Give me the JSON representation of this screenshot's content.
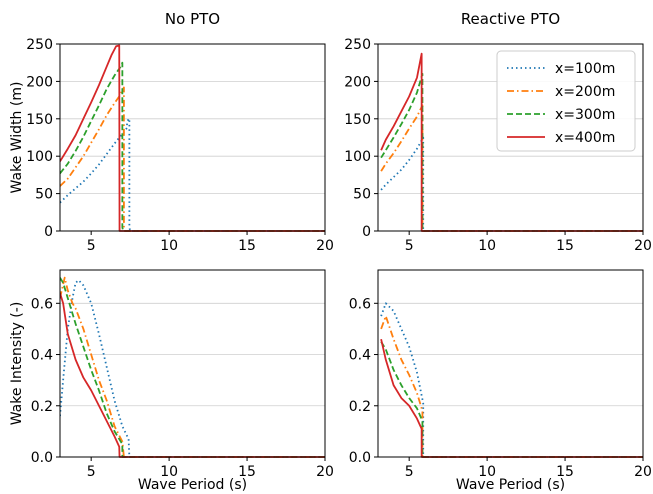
{
  "chart_data": [
    {
      "type": "line",
      "title": "No PTO",
      "xlabel": "",
      "ylabel": "Wake Width (m)",
      "xlim": [
        3,
        20
      ],
      "ylim": [
        0,
        250
      ],
      "xticks": [
        5,
        10,
        15,
        20
      ],
      "yticks": [
        0,
        50,
        100,
        150,
        200,
        250
      ],
      "grid": "horizontal",
      "series": [
        {
          "name": "x=100m",
          "color": "#1f77b4",
          "dash": "dotted",
          "x": [
            3.0,
            3.5,
            4.0,
            4.5,
            5.0,
            5.5,
            6.0,
            6.5,
            7.0,
            7.2,
            7.3,
            7.3,
            7.4,
            7.45,
            7.45,
            7.5,
            10,
            15,
            20
          ],
          "y": [
            38,
            48,
            57,
            66,
            77,
            89,
            103,
            117,
            130,
            135,
            138,
            145,
            150,
            150,
            5,
            0,
            0,
            0,
            0
          ]
        },
        {
          "name": "x=200m",
          "color": "#ff7f0e",
          "dash": "dashdot",
          "x": [
            3.0,
            3.5,
            4.0,
            4.5,
            5.0,
            5.5,
            6.0,
            6.5,
            6.8,
            7.0,
            7.1,
            7.1,
            7.15,
            7.2,
            10,
            15,
            20
          ],
          "y": [
            60,
            70,
            85,
            100,
            118,
            136,
            155,
            171,
            180,
            188,
            192,
            3,
            0,
            0,
            0,
            0,
            0
          ]
        },
        {
          "name": "x=300m",
          "color": "#2ca02c",
          "dash": "dashed",
          "x": [
            3.0,
            3.5,
            4.0,
            4.5,
            5.0,
            5.5,
            6.0,
            6.5,
            6.9,
            7.0,
            7.0,
            7.05,
            10,
            15,
            20
          ],
          "y": [
            77,
            90,
            107,
            126,
            147,
            168,
            190,
            208,
            220,
            225,
            5,
            0,
            0,
            0,
            0
          ]
        },
        {
          "name": "x=400m",
          "color": "#d62728",
          "dash": "solid",
          "x": [
            3.0,
            3.5,
            4.0,
            4.5,
            5.0,
            5.5,
            6.0,
            6.3,
            6.6,
            6.8,
            6.82,
            6.85,
            10,
            15,
            20
          ],
          "y": [
            93,
            110,
            128,
            150,
            172,
            195,
            220,
            235,
            247,
            248,
            0,
            0,
            0,
            0,
            0
          ]
        }
      ]
    },
    {
      "type": "line",
      "title": "Reactive PTO",
      "xlabel": "",
      "ylabel": "",
      "xlim": [
        3,
        20
      ],
      "ylim": [
        0,
        250
      ],
      "xticks": [
        5,
        10,
        15,
        20
      ],
      "yticks": [
        0,
        50,
        100,
        150,
        200,
        250
      ],
      "grid": "horizontal",
      "legend": "top-right",
      "series": [
        {
          "name": "x=100m",
          "color": "#1f77b4",
          "dash": "dotted",
          "x": [
            3.2,
            3.5,
            4.0,
            4.5,
            5.0,
            5.5,
            5.9,
            5.9,
            5.95,
            10,
            15,
            20
          ],
          "y": [
            55,
            62,
            72,
            82,
            95,
            110,
            125,
            0,
            0,
            0,
            0,
            0
          ]
        },
        {
          "name": "x=200m",
          "color": "#ff7f0e",
          "dash": "dashdot",
          "x": [
            3.2,
            3.5,
            4.0,
            4.5,
            5.0,
            5.5,
            5.85,
            5.85,
            5.9,
            10,
            15,
            20
          ],
          "y": [
            80,
            90,
            104,
            120,
            137,
            153,
            168,
            0,
            0,
            0,
            0,
            0
          ]
        },
        {
          "name": "x=300m",
          "color": "#2ca02c",
          "dash": "dashed",
          "x": [
            3.2,
            3.5,
            4.0,
            4.5,
            5.0,
            5.5,
            5.85,
            5.85,
            5.9,
            10,
            15,
            20
          ],
          "y": [
            98,
            108,
            125,
            143,
            162,
            185,
            210,
            0,
            0,
            0,
            0,
            0
          ]
        },
        {
          "name": "x=400m",
          "color": "#d62728",
          "dash": "solid",
          "x": [
            3.2,
            3.5,
            4.0,
            4.5,
            5.0,
            5.5,
            5.8,
            5.8,
            5.85,
            10,
            15,
            20
          ],
          "y": [
            108,
            122,
            140,
            160,
            180,
            205,
            237,
            0,
            0,
            0,
            0,
            0
          ]
        }
      ]
    },
    {
      "type": "line",
      "title": "",
      "xlabel": "Wave Period (s)",
      "ylabel": "Wake Intensity (-)",
      "xlim": [
        3,
        20
      ],
      "ylim": [
        0,
        0.73
      ],
      "xticks": [
        5,
        10,
        15,
        20
      ],
      "yticks": [
        0.0,
        0.2,
        0.4,
        0.6
      ],
      "ytick_labels": [
        "0.0",
        "0.2",
        "0.4",
        "0.6"
      ],
      "grid": "horizontal",
      "series": [
        {
          "name": "x=100m",
          "color": "#1f77b4",
          "dash": "dotted",
          "x": [
            3.0,
            3.2,
            3.5,
            3.8,
            4.0,
            4.2,
            4.5,
            5.0,
            5.5,
            6.0,
            6.5,
            7.0,
            7.4,
            7.45,
            7.5,
            10,
            15,
            20
          ],
          "y": [
            0.16,
            0.3,
            0.5,
            0.62,
            0.68,
            0.69,
            0.67,
            0.6,
            0.48,
            0.35,
            0.22,
            0.12,
            0.07,
            0.0,
            0.0,
            0.0,
            0.0,
            0.0
          ]
        },
        {
          "name": "x=200m",
          "color": "#ff7f0e",
          "dash": "dashdot",
          "x": [
            3.0,
            3.3,
            3.5,
            3.8,
            4.0,
            4.5,
            5.0,
            5.5,
            6.0,
            6.5,
            7.0,
            7.1,
            7.15,
            10,
            15,
            20
          ],
          "y": [
            0.62,
            0.7,
            0.65,
            0.6,
            0.58,
            0.5,
            0.4,
            0.3,
            0.22,
            0.12,
            0.06,
            0.0,
            0.0,
            0.0,
            0.0,
            0.0
          ]
        },
        {
          "name": "x=300m",
          "color": "#2ca02c",
          "dash": "dashed",
          "x": [
            3.0,
            3.2,
            3.5,
            4.0,
            4.5,
            5.0,
            5.5,
            6.0,
            6.5,
            7.0,
            7.0,
            7.05,
            10,
            15,
            20
          ],
          "y": [
            0.7,
            0.68,
            0.62,
            0.52,
            0.43,
            0.34,
            0.26,
            0.17,
            0.1,
            0.05,
            0.0,
            0.0,
            0.0,
            0.0,
            0.0
          ]
        },
        {
          "name": "x=400m",
          "color": "#d62728",
          "dash": "solid",
          "x": [
            3.0,
            3.2,
            3.5,
            4.0,
            4.5,
            5.0,
            5.5,
            6.0,
            6.5,
            6.8,
            6.82,
            6.85,
            10,
            15,
            20
          ],
          "y": [
            0.64,
            0.6,
            0.48,
            0.38,
            0.31,
            0.26,
            0.2,
            0.14,
            0.08,
            0.04,
            0.0,
            0.0,
            0.0,
            0.0,
            0.0
          ]
        }
      ]
    },
    {
      "type": "line",
      "title": "",
      "xlabel": "Wave Period (s)",
      "ylabel": "",
      "xlim": [
        3,
        20
      ],
      "ylim": [
        0,
        0.73
      ],
      "xticks": [
        5,
        10,
        15,
        20
      ],
      "yticks": [
        0.0,
        0.2,
        0.4,
        0.6
      ],
      "ytick_labels": [
        "0.0",
        "0.2",
        "0.4",
        "0.6"
      ],
      "grid": "horizontal",
      "series": [
        {
          "name": "x=100m",
          "color": "#1f77b4",
          "dash": "dotted",
          "x": [
            3.2,
            3.5,
            4.0,
            4.5,
            5.0,
            5.5,
            5.9,
            5.9,
            5.95,
            10,
            15,
            20
          ],
          "y": [
            0.55,
            0.6,
            0.57,
            0.5,
            0.43,
            0.33,
            0.21,
            0.0,
            0.0,
            0.0,
            0.0,
            0.0
          ]
        },
        {
          "name": "x=200m",
          "color": "#ff7f0e",
          "dash": "dashdot",
          "x": [
            3.2,
            3.5,
            4.0,
            4.5,
            5.0,
            5.5,
            5.85,
            5.85,
            5.9,
            10,
            15,
            20
          ],
          "y": [
            0.5,
            0.55,
            0.46,
            0.38,
            0.32,
            0.25,
            0.18,
            0.0,
            0.0,
            0.0,
            0.0,
            0.0
          ]
        },
        {
          "name": "x=300m",
          "color": "#2ca02c",
          "dash": "dashed",
          "x": [
            3.2,
            3.5,
            4.0,
            4.5,
            5.0,
            5.5,
            5.85,
            5.85,
            5.9,
            10,
            15,
            20
          ],
          "y": [
            0.45,
            0.42,
            0.34,
            0.28,
            0.23,
            0.19,
            0.14,
            0.0,
            0.0,
            0.0,
            0.0,
            0.0
          ]
        },
        {
          "name": "x=400m",
          "color": "#d62728",
          "dash": "solid",
          "x": [
            3.2,
            3.5,
            4.0,
            4.5,
            5.0,
            5.5,
            5.8,
            5.8,
            5.85,
            10,
            15,
            20
          ],
          "y": [
            0.46,
            0.38,
            0.28,
            0.23,
            0.2,
            0.15,
            0.11,
            0.0,
            0.0,
            0.0,
            0.0,
            0.0
          ]
        }
      ]
    }
  ]
}
